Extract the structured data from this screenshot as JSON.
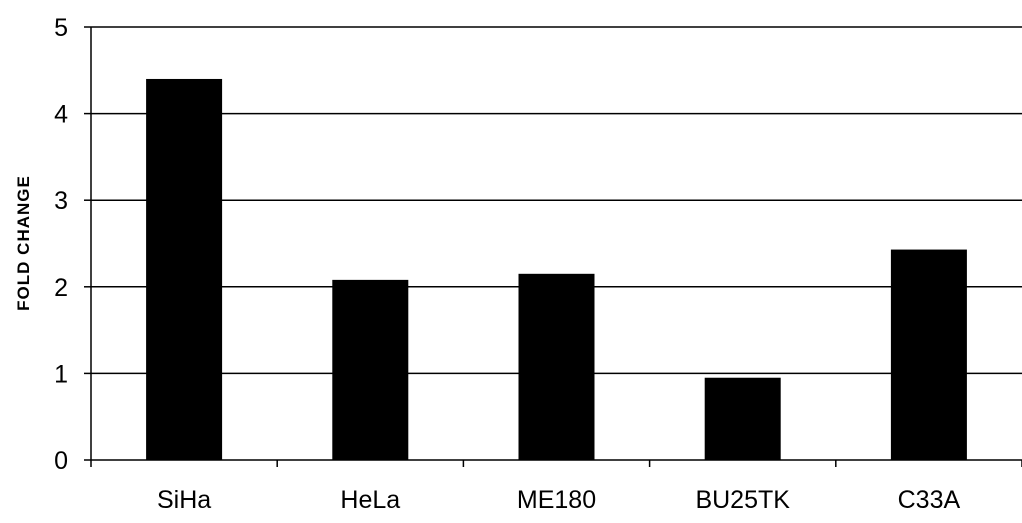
{
  "chart_data": {
    "type": "bar",
    "title": "",
    "xlabel": "",
    "ylabel": "FOLD CHANGE",
    "categories": [
      "SiHa",
      "HeLa",
      "ME180",
      "BU25TK",
      "C33A"
    ],
    "values": [
      4.4,
      2.08,
      2.15,
      0.95,
      2.43
    ],
    "ylim": [
      0,
      5
    ],
    "yticks": [
      0,
      1,
      2,
      3,
      4,
      5
    ],
    "grid": true,
    "legend": "none",
    "bar_color": "#000000",
    "grid_color": "#000000"
  }
}
